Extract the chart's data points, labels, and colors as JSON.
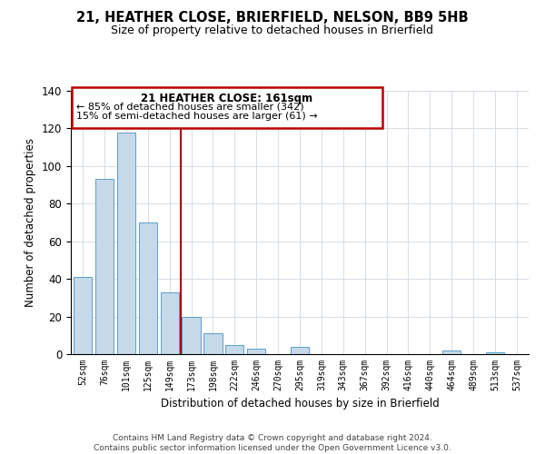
{
  "title": "21, HEATHER CLOSE, BRIERFIELD, NELSON, BB9 5HB",
  "subtitle": "Size of property relative to detached houses in Brierfield",
  "xlabel": "Distribution of detached houses by size in Brierfield",
  "ylabel": "Number of detached properties",
  "bin_labels": [
    "52sqm",
    "76sqm",
    "101sqm",
    "125sqm",
    "149sqm",
    "173sqm",
    "198sqm",
    "222sqm",
    "246sqm",
    "270sqm",
    "295sqm",
    "319sqm",
    "343sqm",
    "367sqm",
    "392sqm",
    "416sqm",
    "440sqm",
    "464sqm",
    "489sqm",
    "513sqm",
    "537sqm"
  ],
  "bar_heights": [
    41,
    93,
    118,
    70,
    33,
    20,
    11,
    5,
    3,
    0,
    4,
    0,
    0,
    0,
    0,
    0,
    0,
    2,
    0,
    1,
    0
  ],
  "bar_color": "#c5d9ea",
  "bar_edge_color": "#5b9ec9",
  "highlight_line_color": "#aa0000",
  "ylim": [
    0,
    140
  ],
  "yticks": [
    0,
    20,
    40,
    60,
    80,
    100,
    120,
    140
  ],
  "annotation_title": "21 HEATHER CLOSE: 161sqm",
  "annotation_line1": "← 85% of detached houses are smaller (342)",
  "annotation_line2": "15% of semi-detached houses are larger (61) →",
  "footer_line1": "Contains HM Land Registry data © Crown copyright and database right 2024.",
  "footer_line2": "Contains public sector information licensed under the Open Government Licence v3.0.",
  "background_color": "#ffffff",
  "grid_color": "#d0d8e0"
}
